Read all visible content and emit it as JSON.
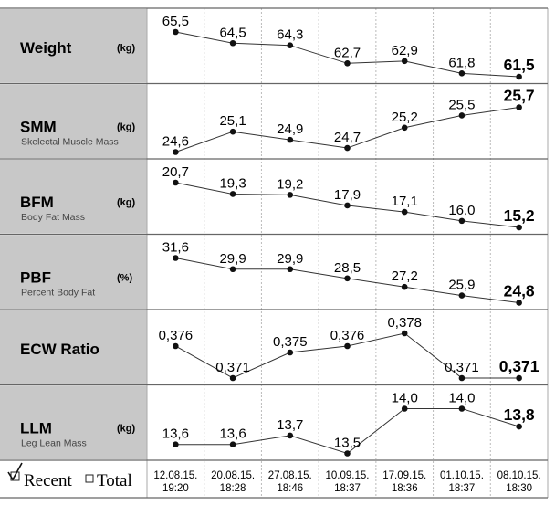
{
  "dates": [
    [
      "12.08.15.",
      "19:20"
    ],
    [
      "20.08.15.",
      "18:28"
    ],
    [
      "27.08.15.",
      "18:46"
    ],
    [
      "10.09.15.",
      "18:37"
    ],
    [
      "17.09.15.",
      "18:36"
    ],
    [
      "01.10.15.",
      "18:37"
    ],
    [
      "08.10.15.",
      "18:30"
    ]
  ],
  "legend": {
    "recent_label": "Recent",
    "total_label": "Total",
    "recent_checked": true,
    "total_checked": false
  },
  "colors": {
    "label_bg": "#c8c8c8",
    "line": "#333333",
    "grid": "#888888",
    "point": "#111111"
  },
  "chart_data": [
    {
      "type": "line",
      "title": "Weight",
      "unit": "(kg)",
      "subtitle": "",
      "values": [
        65.5,
        64.5,
        64.3,
        62.7,
        62.9,
        61.8,
        61.5
      ],
      "labels": [
        "65,5",
        "64,5",
        "64,3",
        "62,7",
        "62,9",
        "61,8",
        "61,5"
      ]
    },
    {
      "type": "line",
      "title": "SMM",
      "unit": "(kg)",
      "subtitle": "Skelectal Muscle Mass",
      "values": [
        24.6,
        25.1,
        24.9,
        24.7,
        25.2,
        25.5,
        25.7
      ],
      "labels": [
        "24,6",
        "25,1",
        "24,9",
        "24,7",
        "25,2",
        "25,5",
        "25,7"
      ]
    },
    {
      "type": "line",
      "title": "BFM",
      "unit": "(kg)",
      "subtitle": "Body Fat Mass",
      "values": [
        20.7,
        19.3,
        19.2,
        17.9,
        17.1,
        16.0,
        15.2
      ],
      "labels": [
        "20,7",
        "19,3",
        "19,2",
        "17,9",
        "17,1",
        "16,0",
        "15,2"
      ]
    },
    {
      "type": "line",
      "title": "PBF",
      "unit": "(%)",
      "subtitle": "Percent Body Fat",
      "values": [
        31.6,
        29.9,
        29.9,
        28.5,
        27.2,
        25.9,
        24.8
      ],
      "labels": [
        "31,6",
        "29,9",
        "29,9",
        "28,5",
        "27,2",
        "25,9",
        "24,8"
      ]
    },
    {
      "type": "line",
      "title": "ECW Ratio",
      "unit": "",
      "subtitle": "",
      "values": [
        0.376,
        0.371,
        0.375,
        0.376,
        0.378,
        0.371,
        0.371
      ],
      "labels": [
        "0,376",
        "0,371",
        "0,375",
        "0,376",
        "0,378",
        "0,371",
        "0,371"
      ]
    },
    {
      "type": "line",
      "title": "LLM",
      "unit": "(kg)",
      "subtitle": "Leg Lean Mass",
      "values": [
        13.6,
        13.6,
        13.7,
        13.5,
        14.0,
        14.0,
        13.8
      ],
      "labels": [
        "13,6",
        "13,6",
        "13,7",
        "13,5",
        "14,0",
        "14,0",
        "13,8"
      ]
    }
  ]
}
